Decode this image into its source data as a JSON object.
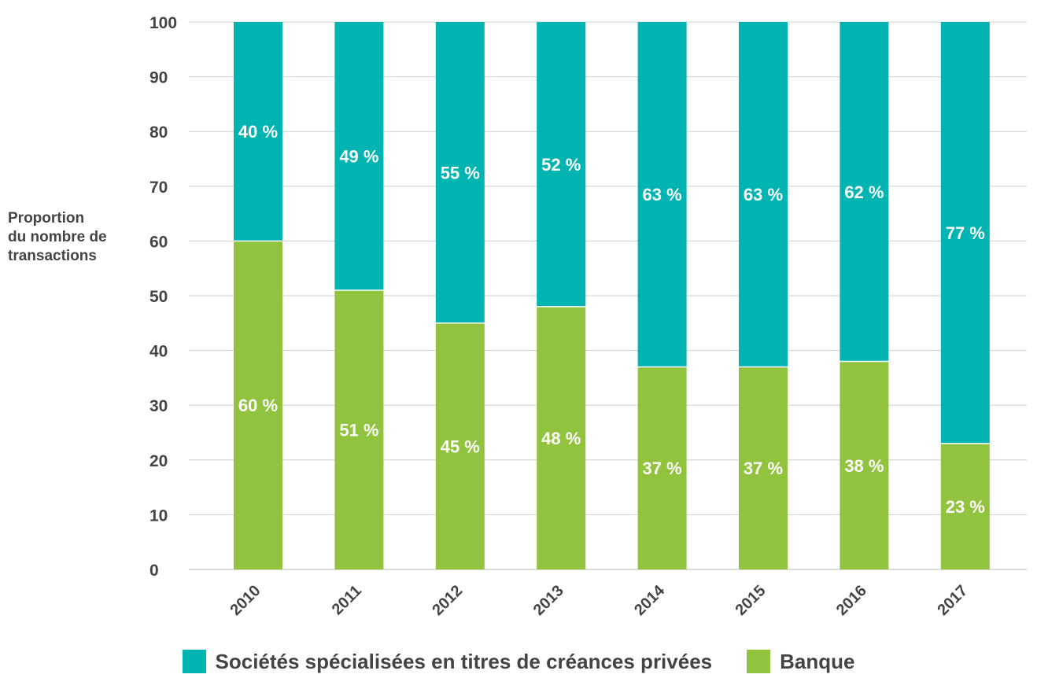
{
  "chart_data": {
    "type": "bar",
    "stacked": true,
    "title": "",
    "xlabel": "",
    "ylabel": "Proportion\ndu nombre de\ntransactions",
    "ylim": [
      0,
      100
    ],
    "yticks": [
      0,
      10,
      20,
      30,
      40,
      50,
      60,
      70,
      80,
      90,
      100
    ],
    "grid": true,
    "legend_position": "bottom",
    "categories": [
      "2010",
      "2011",
      "2012",
      "2013",
      "2014",
      "2015",
      "2016",
      "2017"
    ],
    "series": [
      {
        "name": "Banque",
        "color": "#92c33f",
        "values": [
          60,
          51,
          45,
          48,
          37,
          37,
          38,
          23
        ],
        "labels": [
          "60 %",
          "51 %",
          "45 %",
          "48 %",
          "37 %",
          "37 %",
          "38 %",
          "23 %"
        ]
      },
      {
        "name": "Sociétés spécialisées en titres de créances privées",
        "color": "#00b5b1",
        "values": [
          40,
          49,
          55,
          52,
          63,
          63,
          62,
          77
        ],
        "labels": [
          "40 %",
          "49 %",
          "55 %",
          "52 %",
          "63 %",
          "63 %",
          "62 %",
          "77 %"
        ]
      }
    ]
  },
  "legend": {
    "items": [
      {
        "label": "Sociétés spécialisées en titres de créances privées",
        "color": "#00b5b1"
      },
      {
        "label": "Banque",
        "color": "#92c33f"
      }
    ]
  }
}
